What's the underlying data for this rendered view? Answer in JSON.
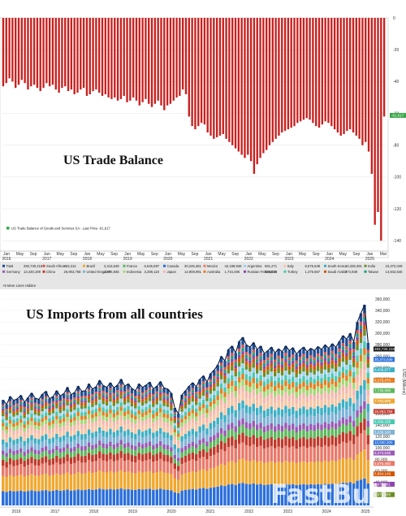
{
  "chart_data": [
    {
      "type": "bar",
      "title": "US Trade Balance",
      "legend_label": "US Trade Balance of Goods and Services SA - Last Price -61,617",
      "last_value_label": "-61.617",
      "color": "#c8201e",
      "ylim": [
        -145,
        0
      ],
      "yticks": [
        0,
        -20,
        -40,
        -60,
        -80,
        -100,
        -120,
        -140
      ],
      "values": [
        -43,
        -41,
        -38,
        -40,
        -44,
        -42,
        -39,
        -41,
        -45,
        -43,
        -42,
        -44,
        -46,
        -44,
        -41,
        -43,
        -42,
        -45,
        -47,
        -44,
        -43,
        -46,
        -45,
        -48,
        -47,
        -45,
        -44,
        -49,
        -48,
        -46,
        -45,
        -47,
        -49,
        -48,
        -50,
        -51,
        -50,
        -52,
        -51,
        -49,
        -53,
        -52,
        -50,
        -52,
        -55,
        -53,
        -51,
        -54,
        -56,
        -54,
        -52,
        -55,
        -58,
        -55,
        -54,
        -52,
        -50,
        -49,
        -45,
        -48,
        -62,
        -68,
        -70,
        -68,
        -66,
        -67,
        -72,
        -74,
        -76,
        -75,
        -74,
        -73,
        -76,
        -78,
        -80,
        -82,
        -84,
        -86,
        -88,
        -86,
        -90,
        -98,
        -92,
        -88,
        -85,
        -83,
        -80,
        -78,
        -76,
        -74,
        -72,
        -71,
        -70,
        -69,
        -68,
        -66,
        -65,
        -64,
        -63,
        -64,
        -66,
        -68,
        -69,
        -67,
        -65,
        -66,
        -68,
        -70,
        -72,
        -74,
        -73,
        -71,
        -70,
        -72,
        -74,
        -76,
        -80,
        -78,
        -84,
        -98,
        -130,
        -122,
        -140,
        -62
      ],
      "x_ticks": [
        {
          "month": "Jan",
          "year": "2016"
        },
        {
          "month": "May",
          "year": ""
        },
        {
          "month": "Sep",
          "year": ""
        },
        {
          "month": "Jan",
          "year": "2017"
        },
        {
          "month": "May",
          "year": ""
        },
        {
          "month": "Sep",
          "year": ""
        },
        {
          "month": "Jan",
          "year": "2018"
        },
        {
          "month": "May",
          "year": ""
        },
        {
          "month": "Sep",
          "year": ""
        },
        {
          "month": "Jan",
          "year": "2019"
        },
        {
          "month": "May",
          "year": ""
        },
        {
          "month": "Sep",
          "year": ""
        },
        {
          "month": "Jan",
          "year": "2020"
        },
        {
          "month": "May",
          "year": ""
        },
        {
          "month": "Sep",
          "year": ""
        },
        {
          "month": "Jan",
          "year": "2021"
        },
        {
          "month": "May",
          "year": ""
        },
        {
          "month": "Sep",
          "year": ""
        },
        {
          "month": "Jan",
          "year": "2022"
        },
        {
          "month": "May",
          "year": ""
        },
        {
          "month": "Sep",
          "year": ""
        },
        {
          "month": "Jan",
          "year": "2023"
        },
        {
          "month": "May",
          "year": ""
        },
        {
          "month": "Sep",
          "year": ""
        },
        {
          "month": "Jan",
          "year": "2024"
        },
        {
          "month": "May",
          "year": ""
        },
        {
          "month": "Sep",
          "year": ""
        },
        {
          "month": "Jan",
          "year": "2025"
        },
        {
          "month": "Mar",
          "year": ""
        }
      ]
    },
    {
      "type": "area",
      "title": "US Imports from all countries",
      "ylabel": "USD (Millions)",
      "ylim": [
        0,
        360000
      ],
      "yticks": [
        20000,
        40000,
        60000,
        80000,
        100000,
        120000,
        140000,
        160000,
        180000,
        200000,
        220000,
        240000,
        260000,
        280000,
        300000,
        320000,
        340000,
        360000
      ],
      "total_label": "283,730.218",
      "total": [
        184000,
        176000,
        190000,
        183000,
        186000,
        192000,
        180000,
        188000,
        196000,
        187000,
        185000,
        194000,
        199000,
        186000,
        190000,
        200000,
        191000,
        195000,
        206000,
        193000,
        197000,
        208000,
        199000,
        200000,
        212000,
        203000,
        207000,
        218000,
        209000,
        206000,
        214000,
        205000,
        210000,
        220000,
        208000,
        212000,
        204000,
        200000,
        212000,
        206000,
        210000,
        215000,
        203000,
        208000,
        216000,
        205000,
        203000,
        196000,
        170000,
        160000,
        193000,
        200000,
        208000,
        214000,
        207000,
        220000,
        226000,
        215000,
        230000,
        236000,
        245000,
        260000,
        252000,
        272000,
        278000,
        266000,
        286000,
        293000,
        280000,
        276000,
        284000,
        272000,
        278000,
        265000,
        270000,
        276000,
        266000,
        273000,
        268000,
        278000,
        270000,
        275000,
        264000,
        271000,
        276000,
        268000,
        274000,
        270000,
        277000,
        272000,
        280000,
        274000,
        282000,
        276000,
        286000,
        296000,
        290000,
        300000,
        285000,
        320000,
        335000,
        350000,
        283730
      ],
      "series": [
        {
          "name": "Total",
          "value": "283,730.218",
          "color": "#1f4e96"
        },
        {
          "name": "South Africa",
          "value": "863,312",
          "color": "#d9534f"
        },
        {
          "name": "Brazil",
          "value": "3,313,649",
          "color": "#f0a830"
        },
        {
          "name": "France",
          "value": "6,645,597",
          "color": "#5cb85c"
        },
        {
          "name": "Canada",
          "value": "30,245,461",
          "color": "#2a6fdb"
        },
        {
          "name": "Mexico",
          "value": "42,198,948",
          "color": "#e8796a"
        },
        {
          "name": "Argentina",
          "value": "561,271",
          "color": "#9fd0f0"
        },
        {
          "name": "Italy",
          "value": "6,675,638",
          "color": "#f7c6a5"
        },
        {
          "name": "South Korea",
          "value": "10,336,391",
          "color": "#3cb0c4"
        },
        {
          "name": "India",
          "value": "10,372,049",
          "color": "#6b8e23"
        },
        {
          "name": "Germany",
          "value": "13,430,199",
          "color": "#9b59b6"
        },
        {
          "name": "China",
          "value": "26,903,758",
          "color": "#c0392b"
        },
        {
          "name": "United Kingdom",
          "value": "4,976,845",
          "color": "#7fb3d5"
        },
        {
          "name": "Indonesia",
          "value": "3,289,118",
          "color": "#a3d977"
        },
        {
          "name": "Japan",
          "value": "12,908,991",
          "color": "#f5b7b1"
        },
        {
          "name": "Australia",
          "value": "1,744,495",
          "color": "#e67e22"
        },
        {
          "name": "Russian Federation",
          "value": "538,038",
          "color": "#8e44ad"
        },
        {
          "name": "Turkey",
          "value": "1,375,667",
          "color": "#48c9b0"
        },
        {
          "name": "Saudi Arabia",
          "value": "774,938",
          "color": "#d35400"
        },
        {
          "name": "Taiwan",
          "value": "14,842,645",
          "color": "#16a085"
        }
      ],
      "more_lines_note": "+5 More Lines Hidden",
      "right_badges": [
        {
          "text": "283,730.218",
          "color": "#111111"
        },
        {
          "text": "30,372,049",
          "color": "#2a6fdb"
        },
        {
          "text": "9,436,877",
          "color": "#3cb0c4"
        },
        {
          "text": "8,179,474",
          "color": "#e67e22"
        },
        {
          "text": "7,745,068",
          "color": "#5cb85c"
        },
        {
          "text": "7,754,608",
          "color": "#f0a830"
        },
        {
          "text": "26,963,758",
          "color": "#c0392b"
        },
        {
          "text": "8,399,158",
          "color": "#48c9b0"
        },
        {
          "text": "5,236,183",
          "color": "#7fb3d5"
        },
        {
          "text": "12,930,300",
          "color": "#2a6fdb"
        },
        {
          "text": "6,473,638",
          "color": "#9b59b6"
        },
        {
          "text": "8,075,460",
          "color": "#e8796a"
        },
        {
          "text": "5,864,149",
          "color": "#d35400"
        },
        {
          "text": "4,979,461",
          "color": "#8e44ad"
        },
        {
          "text": "3,571,649",
          "color": "#6b8e23"
        }
      ],
      "x_years": [
        "2016",
        "2017",
        "2018",
        "2019",
        "2020",
        "2021",
        "2022",
        "2023",
        "2024",
        "2025"
      ]
    }
  ],
  "watermark": "FastBull"
}
